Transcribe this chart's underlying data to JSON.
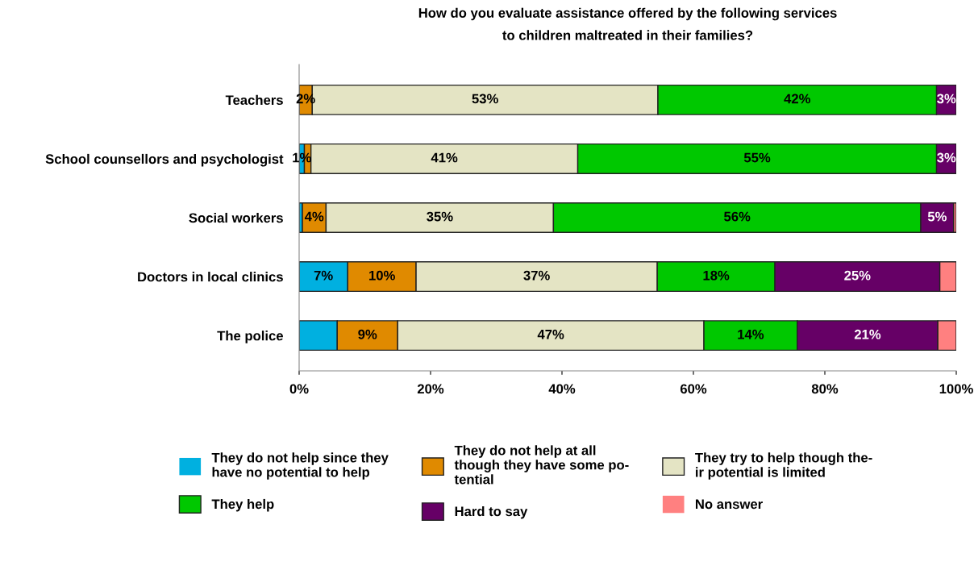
{
  "chart_data": {
    "type": "bar",
    "orientation": "horizontal",
    "stacked": true,
    "title": "How do you evaluate assistance offered by the following services\nto children maltreated in their families?",
    "categories": [
      "Teachers",
      "School counsellors and psychologist",
      "Social workers",
      "Doctors in local clinics",
      "The police"
    ],
    "series": [
      {
        "name": "They do not help since they\nhave no potential to help",
        "color": "#00b0e0",
        "values": [
          0,
          0.8,
          0.5,
          7.4,
          5.8
        ],
        "value_labels": [
          null,
          "1%",
          null,
          "7%",
          null
        ]
      },
      {
        "name": "They do not help at all\nthough they have some po-\ntential",
        "color": "#e08a00",
        "values": [
          2,
          1.0,
          3.6,
          10.4,
          9.2
        ],
        "value_labels": [
          "2%",
          null,
          "4%",
          "10%",
          "9%"
        ]
      },
      {
        "name": "They try to help though the-\nir potential is limited",
        "color": "#e4e4c4",
        "values": [
          52.6,
          40.6,
          34.6,
          36.7,
          46.6
        ],
        "value_labels": [
          "53%",
          "41%",
          "35%",
          "37%",
          "47%"
        ]
      },
      {
        "name": "They help",
        "color": "#00c800",
        "values": [
          42.4,
          54.6,
          55.9,
          17.9,
          14.2
        ],
        "value_labels": [
          "42%",
          "55%",
          "56%",
          "18%",
          "14%"
        ]
      },
      {
        "name": "Hard to say",
        "color": "#660066",
        "values": [
          3,
          3.0,
          5.0,
          25.1,
          21.4
        ],
        "value_labels": [
          "3%",
          "3%",
          "5%",
          "25%",
          "21%"
        ]
      },
      {
        "name": "No answer",
        "color": "#ff8080",
        "values": [
          0,
          0,
          0.4,
          2.5,
          2.8
        ],
        "value_labels": [
          null,
          null,
          null,
          null,
          null
        ]
      }
    ],
    "xlim": [
      0,
      100
    ],
    "xticks": [
      {
        "value": 0,
        "label": "0%"
      },
      {
        "value": 20,
        "label": "20%"
      },
      {
        "value": 40,
        "label": "40%"
      },
      {
        "value": 60,
        "label": "60%"
      },
      {
        "value": 80,
        "label": "80%"
      },
      {
        "value": 100,
        "label": "100%"
      }
    ],
    "grid": false,
    "legend": "bottom"
  }
}
